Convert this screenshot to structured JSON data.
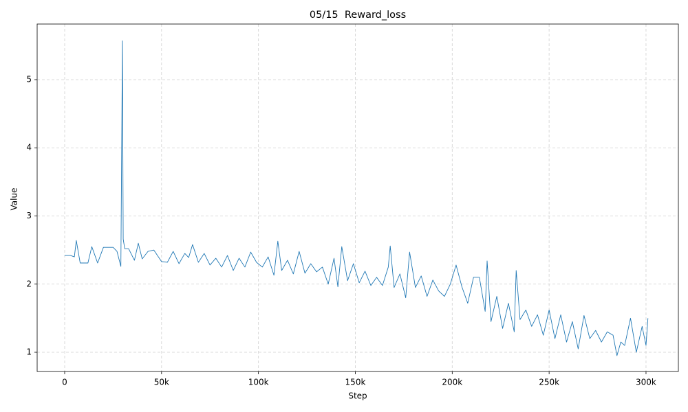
{
  "chart_data": {
    "type": "line",
    "title": "05/15  Reward_loss",
    "x_label": "Step",
    "y_label": "Value",
    "x": [
      0,
      3000,
      5000,
      6000,
      8000,
      12000,
      14000,
      17000,
      20000,
      25000,
      27000,
      29000,
      29800,
      30200,
      31000,
      33000,
      36000,
      38000,
      40000,
      43000,
      46000,
      50000,
      53000,
      56000,
      59000,
      62000,
      64000,
      66000,
      69000,
      72000,
      75000,
      78000,
      81000,
      84000,
      87000,
      90000,
      93000,
      96000,
      99000,
      102000,
      105000,
      108000,
      110000,
      112000,
      115000,
      118000,
      121000,
      124000,
      127000,
      130000,
      133000,
      136000,
      139000,
      141000,
      143000,
      146000,
      149000,
      152000,
      155000,
      158000,
      161000,
      164000,
      167000,
      168000,
      170000,
      173000,
      176000,
      178000,
      181000,
      184000,
      187000,
      190000,
      193000,
      196000,
      199000,
      202000,
      205000,
      208000,
      211000,
      214000,
      217000,
      218000,
      220000,
      223000,
      226000,
      229000,
      232000,
      233000,
      235000,
      238000,
      241000,
      244000,
      247000,
      250000,
      253000,
      256000,
      259000,
      262000,
      265000,
      268000,
      271000,
      274000,
      277000,
      280000,
      283000,
      285000,
      287000,
      289000,
      292000,
      295000,
      298000,
      300000,
      301000
    ],
    "series": [
      {
        "name": "Reward_loss",
        "color": "#1f77b4",
        "values": [
          2.42,
          2.42,
          2.4,
          2.64,
          2.31,
          2.31,
          2.55,
          2.31,
          2.54,
          2.54,
          2.48,
          2.26,
          5.57,
          2.66,
          2.52,
          2.52,
          2.35,
          2.6,
          2.37,
          2.48,
          2.5,
          2.33,
          2.32,
          2.48,
          2.3,
          2.45,
          2.39,
          2.58,
          2.32,
          2.45,
          2.28,
          2.38,
          2.25,
          2.42,
          2.2,
          2.38,
          2.25,
          2.47,
          2.32,
          2.25,
          2.4,
          2.13,
          2.63,
          2.2,
          2.35,
          2.15,
          2.48,
          2.16,
          2.3,
          2.18,
          2.25,
          2.0,
          2.38,
          1.96,
          2.55,
          2.05,
          2.3,
          2.02,
          2.19,
          1.98,
          2.1,
          1.98,
          2.25,
          2.56,
          1.95,
          2.15,
          1.8,
          2.47,
          1.95,
          2.12,
          1.82,
          2.06,
          1.9,
          1.82,
          2.0,
          2.28,
          1.96,
          1.72,
          2.1,
          2.1,
          1.6,
          2.34,
          1.45,
          1.82,
          1.35,
          1.72,
          1.3,
          2.2,
          1.48,
          1.62,
          1.38,
          1.55,
          1.25,
          1.62,
          1.2,
          1.55,
          1.15,
          1.45,
          1.05,
          1.54,
          1.2,
          1.32,
          1.15,
          1.3,
          1.25,
          0.95,
          1.15,
          1.1,
          1.5,
          1.0,
          1.38,
          1.1,
          1.5
        ]
      }
    ],
    "xlim": [
      -14200,
      316700
    ],
    "ylim": [
      0.718,
      5.816
    ],
    "xticks": [
      0,
      {
        "value": 50000,
        "label": "50k"
      },
      {
        "value": 100000,
        "label": "100k"
      },
      {
        "value": 150000,
        "label": "150k"
      },
      {
        "value": 200000,
        "label": "200k"
      },
      {
        "value": 250000,
        "label": "250k"
      },
      {
        "value": 300000,
        "label": "300k"
      }
    ],
    "yticks": [
      1,
      2,
      3,
      4,
      5
    ],
    "grid": true
  }
}
